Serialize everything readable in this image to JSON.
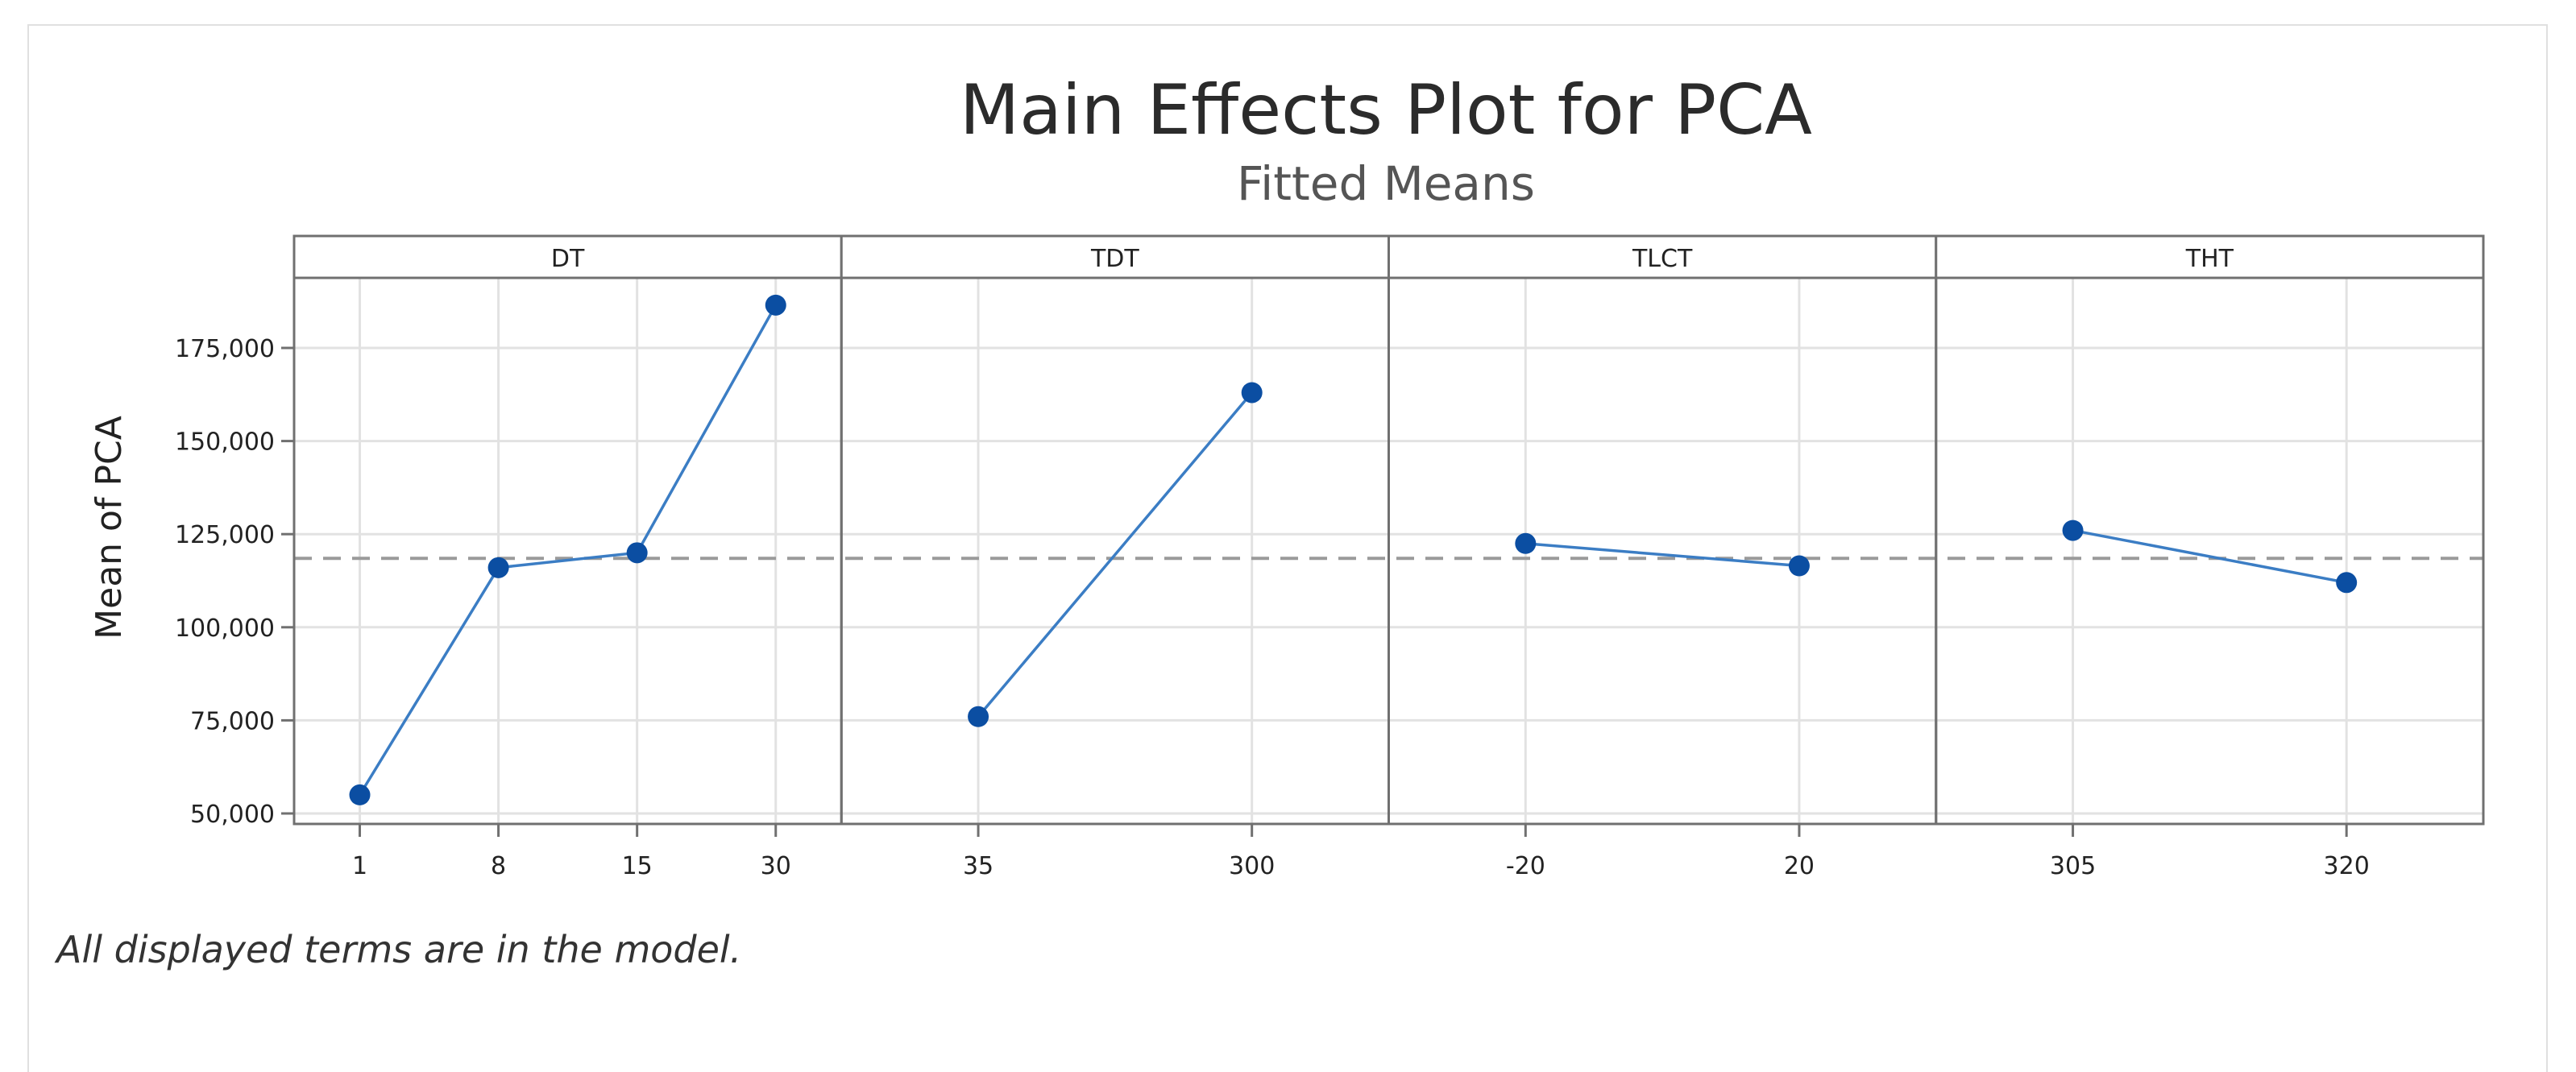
{
  "chart_data": {
    "type": "line",
    "title": "Main Effects Plot for PCA",
    "subtitle": "Fitted Means",
    "ylabel": "Mean of PCA",
    "ylim": [
      47000,
      185000
    ],
    "yticks": [
      50000,
      75000,
      100000,
      125000,
      150000,
      175000
    ],
    "ytick_labels": [
      "50,000",
      "75,000",
      "100,000",
      "125,000",
      "150,000",
      "175,000"
    ],
    "reference_line": 118500,
    "grid": true,
    "panels": [
      {
        "factor": "DT",
        "x": [
          "1",
          "8",
          "15",
          "30"
        ],
        "values": [
          55000,
          116000,
          120000,
          186500
        ]
      },
      {
        "factor": "TDT",
        "x": [
          "35",
          "300"
        ],
        "values": [
          76000,
          163000
        ]
      },
      {
        "factor": "TLCT",
        "x": [
          "-20",
          "20"
        ],
        "values": [
          122500,
          116500
        ]
      },
      {
        "factor": "THT",
        "x": [
          "305",
          "320"
        ],
        "values": [
          126000,
          112000
        ]
      }
    ],
    "colors": {
      "series": "#0b4ea2",
      "line": "#3b7dc4",
      "reference": "#9a9a9a",
      "grid": "#e2e2e2",
      "border": "#707070"
    }
  },
  "footnote": "All displayed terms are in the model."
}
